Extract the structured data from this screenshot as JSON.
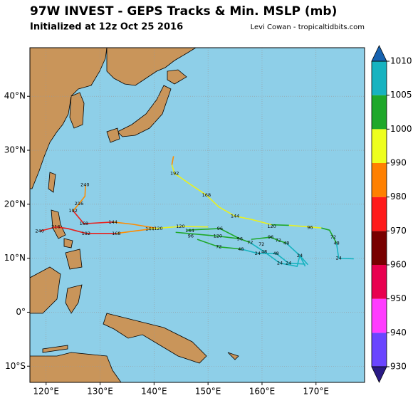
{
  "map": {
    "title": "97W INVEST - GEPS Tracks & Min. MSLP (mb)",
    "subtitle": "Initialized at 12z Oct 25 2016",
    "credit": "Levi Cowan - tropicaltidbits.com",
    "xlim": [
      117,
      179
    ],
    "ylim": [
      -13,
      49
    ],
    "xticks": [
      {
        "value": 120,
        "label": "120°E"
      },
      {
        "value": 130,
        "label": "130°E"
      },
      {
        "value": 140,
        "label": "140°E"
      },
      {
        "value": 150,
        "label": "150°E"
      },
      {
        "value": 160,
        "label": "160°E"
      },
      {
        "value": 170,
        "label": "170°E"
      }
    ],
    "yticks": [
      {
        "value": -10,
        "label": "10°S"
      },
      {
        "value": 0,
        "label": "0°"
      },
      {
        "value": 10,
        "label": "10°N"
      },
      {
        "value": 20,
        "label": "20°N"
      },
      {
        "value": 30,
        "label": "30°N"
      },
      {
        "value": 40,
        "label": "40°N"
      }
    ],
    "grid": true,
    "tracks": [
      {
        "color": "#ff8c00",
        "points": [
          [
            143.6,
            28.9
          ],
          [
            143.3,
            27.3
          ]
        ]
      },
      {
        "color": "#e8f020",
        "points": [
          [
            143.3,
            27.3
          ],
          [
            143.8,
            25.7
          ],
          [
            147,
            23.5
          ],
          [
            149.7,
            21.7
          ]
        ]
      },
      {
        "color": "#e8f020",
        "points": [
          [
            149.7,
            21.7
          ],
          [
            152,
            19.5
          ],
          [
            155,
            17.8
          ],
          [
            158,
            17.2
          ],
          [
            161.8,
            16.2
          ]
        ]
      },
      {
        "color": "#1fa82a",
        "points": [
          [
            161.8,
            16.2
          ],
          [
            165,
            16.1
          ]
        ]
      },
      {
        "color": "#e8f020",
        "points": [
          [
            165,
            16.1
          ],
          [
            168.9,
            15.8
          ],
          [
            171,
            15.6
          ]
        ]
      },
      {
        "color": "#1fa82a",
        "points": [
          [
            171,
            15.6
          ],
          [
            172.5,
            15.2
          ],
          [
            173.2,
            13.9
          ],
          [
            173.8,
            12.8
          ]
        ]
      },
      {
        "color": "#17b3c0",
        "points": [
          [
            173.8,
            12.8
          ],
          [
            174.2,
            10
          ],
          [
            177,
            9.9
          ]
        ]
      },
      {
        "color": "#ff8c00",
        "points": [
          [
            140.8,
            15.5
          ],
          [
            136,
            16.3
          ],
          [
            132.4,
            16.7
          ]
        ]
      },
      {
        "color": "#e8201c",
        "points": [
          [
            132.4,
            16.7
          ],
          [
            127,
            16.4
          ],
          [
            125,
            18.8
          ]
        ]
      },
      {
        "color": "#ff8c00",
        "points": [
          [
            125,
            18.8
          ],
          [
            126.1,
            20.1
          ],
          [
            127.2,
            21.5
          ],
          [
            127.3,
            23.6
          ]
        ]
      },
      {
        "color": "#ff8c00",
        "points": [
          [
            139.2,
            15.4
          ],
          [
            133,
            14.6
          ]
        ]
      },
      {
        "color": "#e8201c",
        "points": [
          [
            133,
            14.6
          ],
          [
            127.4,
            14.6
          ],
          [
            124,
            15.5
          ],
          [
            121.8,
            15.8
          ],
          [
            118.8,
            15
          ]
        ]
      },
      {
        "color": "#e8f020",
        "points": [
          [
            139,
            15.4
          ],
          [
            144.9,
            15.9
          ],
          [
            150,
            15.8
          ]
        ]
      },
      {
        "color": "#1fa82a",
        "points": [
          [
            146,
            15.2
          ],
          [
            152.2,
            15.5
          ],
          [
            155.9,
            13.6
          ],
          [
            157.8,
            12.9
          ]
        ]
      },
      {
        "color": "#17b3c0",
        "points": [
          [
            157.8,
            12.9
          ],
          [
            160.4,
            11.2
          ],
          [
            163.3,
            9.1
          ],
          [
            166.5,
            8.5
          ],
          [
            167,
            10.5
          ],
          [
            168,
            8.5
          ]
        ]
      },
      {
        "color": "#1fa82a",
        "points": [
          [
            144,
            14.8
          ],
          [
            151.8,
            14.1
          ],
          [
            155.9,
            13.6
          ]
        ]
      },
      {
        "color": "#1fa82a",
        "points": [
          [
            148,
            13.5
          ],
          [
            152,
            12.1
          ],
          [
            156.1,
            11.7
          ]
        ]
      },
      {
        "color": "#17b3c0",
        "points": [
          [
            156.1,
            11.7
          ],
          [
            159.2,
            10.9
          ],
          [
            162.6,
            10.9
          ],
          [
            164.9,
            9.1
          ],
          [
            168,
            8.9
          ]
        ]
      },
      {
        "color": "#1fa82a",
        "points": [
          [
            158,
            13.5
          ],
          [
            161.6,
            13.9
          ],
          [
            163,
            13.3
          ],
          [
            164.5,
            12.8
          ]
        ]
      },
      {
        "color": "#17b3c0",
        "points": [
          [
            164.5,
            12.8
          ],
          [
            167,
            10.5
          ],
          [
            168.5,
            8.8
          ]
        ]
      }
    ],
    "hour_labels": [
      {
        "label": "192",
        "lon": 143.8,
        "lat": 25.7
      },
      {
        "label": "168",
        "lon": 149.7,
        "lat": 21.7
      },
      {
        "label": "144",
        "lon": 155.0,
        "lat": 17.8
      },
      {
        "label": "120",
        "lon": 161.8,
        "lat": 15.9
      },
      {
        "label": "96",
        "lon": 168.9,
        "lat": 15.7
      },
      {
        "label": "72",
        "lon": 173.2,
        "lat": 13.9
      },
      {
        "label": "48",
        "lon": 173.8,
        "lat": 12.8
      },
      {
        "label": "24",
        "lon": 174.2,
        "lat": 10.0
      },
      {
        "label": "240",
        "lon": 127.2,
        "lat": 23.6
      },
      {
        "label": "216",
        "lon": 126.1,
        "lat": 20.1
      },
      {
        "label": "192",
        "lon": 125.0,
        "lat": 18.8
      },
      {
        "label": "168",
        "lon": 127.0,
        "lat": 16.4
      },
      {
        "label": "144",
        "lon": 132.4,
        "lat": 16.7
      },
      {
        "label": "120",
        "lon": 140.8,
        "lat": 15.5
      },
      {
        "label": "240",
        "lon": 118.8,
        "lat": 15.0
      },
      {
        "label": "216",
        "lon": 121.8,
        "lat": 15.8
      },
      {
        "label": "192",
        "lon": 127.4,
        "lat": 14.6
      },
      {
        "label": "168",
        "lon": 133.0,
        "lat": 14.6
      },
      {
        "label": "144",
        "lon": 139.2,
        "lat": 15.4
      },
      {
        "label": "120",
        "lon": 144.9,
        "lat": 15.9
      },
      {
        "label": "144",
        "lon": 146.6,
        "lat": 15.1
      },
      {
        "label": "96",
        "lon": 146.8,
        "lat": 14.1
      },
      {
        "label": "96",
        "lon": 152.2,
        "lat": 15.5
      },
      {
        "label": "120",
        "lon": 151.8,
        "lat": 14.1
      },
      {
        "label": "72",
        "lon": 152.0,
        "lat": 12.1
      },
      {
        "label": "96",
        "lon": 155.9,
        "lat": 13.6
      },
      {
        "label": "72",
        "lon": 157.8,
        "lat": 12.9
      },
      {
        "label": "48",
        "lon": 156.1,
        "lat": 11.7
      },
      {
        "label": "72",
        "lon": 159.9,
        "lat": 12.6
      },
      {
        "label": "48",
        "lon": 160.4,
        "lat": 11.2
      },
      {
        "label": "24",
        "lon": 159.2,
        "lat": 10.9
      },
      {
        "label": "96",
        "lon": 161.6,
        "lat": 13.9
      },
      {
        "label": "72",
        "lon": 163.0,
        "lat": 13.3
      },
      {
        "label": "48",
        "lon": 164.5,
        "lat": 12.8
      },
      {
        "label": "48",
        "lon": 162.6,
        "lat": 10.9
      },
      {
        "label": "24",
        "lon": 167.0,
        "lat": 10.5
      },
      {
        "label": "24",
        "lon": 163.3,
        "lat": 9.1
      },
      {
        "label": "24",
        "lon": 164.9,
        "lat": 9.1
      }
    ],
    "colorbar": {
      "ticks": [
        930,
        940,
        950,
        960,
        970,
        980,
        990,
        1000,
        1005,
        1010
      ],
      "colors": [
        "#6a45ff",
        "#ff3cff",
        "#e8004f",
        "#780000",
        "#ff1a1a",
        "#ff8000",
        "#eeff1e",
        "#1fa82a",
        "#17b3c0"
      ],
      "under_color": "#2a1a86",
      "over_color": "#1763b0"
    }
  }
}
